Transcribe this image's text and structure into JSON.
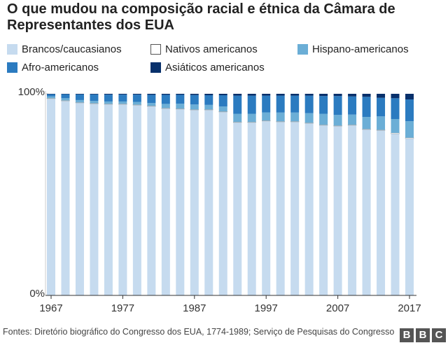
{
  "chart_data": {
    "type": "stacked-bar",
    "title": "O que mudou na composição racial e étnica da Câmara de Representantes dos EUA",
    "categories": [
      "1967",
      null,
      null,
      null,
      null,
      "1977",
      null,
      null,
      null,
      null,
      "1987",
      null,
      null,
      null,
      null,
      "1997",
      null,
      null,
      null,
      null,
      "2007",
      null,
      null,
      null,
      null,
      "2017"
    ],
    "series": [
      {
        "name": "Brancos/caucasianos",
        "color": "#c6dbef",
        "values": [
          97.6,
          96.5,
          95.5,
          95.1,
          94.8,
          94.8,
          94.4,
          93.8,
          92.7,
          92.4,
          92.0,
          92.0,
          91.0,
          85.8,
          85.8,
          86.5,
          86.1,
          86.1,
          85.4,
          84.4,
          84.0,
          84.4,
          82.3,
          81.9,
          80.2,
          77.8
        ]
      },
      {
        "name": "Nativos americanos",
        "color": "#ffffff",
        "values": [
          0.2,
          0.2,
          0.2,
          0.2,
          0.2,
          0.2,
          0.2,
          0.2,
          0.2,
          0.2,
          0.2,
          0.2,
          0.2,
          0.2,
          0.2,
          0.2,
          0.2,
          0.2,
          0.2,
          0.2,
          0.2,
          0.2,
          0.2,
          0.2,
          0.4,
          0.4
        ]
      },
      {
        "name": "Hispano-americanos",
        "color": "#6baed6",
        "values": [
          0.9,
          1.1,
          1.2,
          1.2,
          1.2,
          1.2,
          1.4,
          1.4,
          2.1,
          2.5,
          2.5,
          2.3,
          2.5,
          4.1,
          4.1,
          4.1,
          4.4,
          4.4,
          4.8,
          5.5,
          5.3,
          5.1,
          6.0,
          6.7,
          6.9,
          8.2
        ]
      },
      {
        "name": "Afro-americanos",
        "color": "#2b7bc0",
        "values": [
          1.1,
          2.0,
          2.8,
          3.2,
          3.4,
          3.4,
          3.6,
          4.1,
          4.5,
          4.4,
          4.7,
          4.8,
          5.6,
          9.0,
          9.0,
          8.3,
          8.4,
          8.4,
          8.7,
          8.8,
          9.4,
          9.0,
          10.0,
          9.2,
          10.3,
          10.8
        ]
      },
      {
        "name": "Asiáticos americanos",
        "color": "#08306b",
        "values": [
          0.2,
          0.2,
          0.3,
          0.3,
          0.4,
          0.4,
          0.4,
          0.5,
          0.5,
          0.5,
          0.6,
          0.7,
          0.7,
          0.9,
          0.9,
          0.9,
          0.9,
          0.9,
          0.9,
          1.1,
          1.1,
          1.3,
          1.5,
          2.0,
          2.2,
          2.8
        ]
      }
    ],
    "ylim": [
      0,
      100
    ],
    "yticks": [
      {
        "value": 0,
        "label": "0%"
      },
      {
        "value": 100,
        "label": "100%"
      }
    ],
    "source": "Fontes: Diretório biográfico do Congresso dos EUA, 1774-1989; Serviço de Pesquisas do Congresso",
    "logo": [
      "B",
      "B",
      "C"
    ]
  }
}
